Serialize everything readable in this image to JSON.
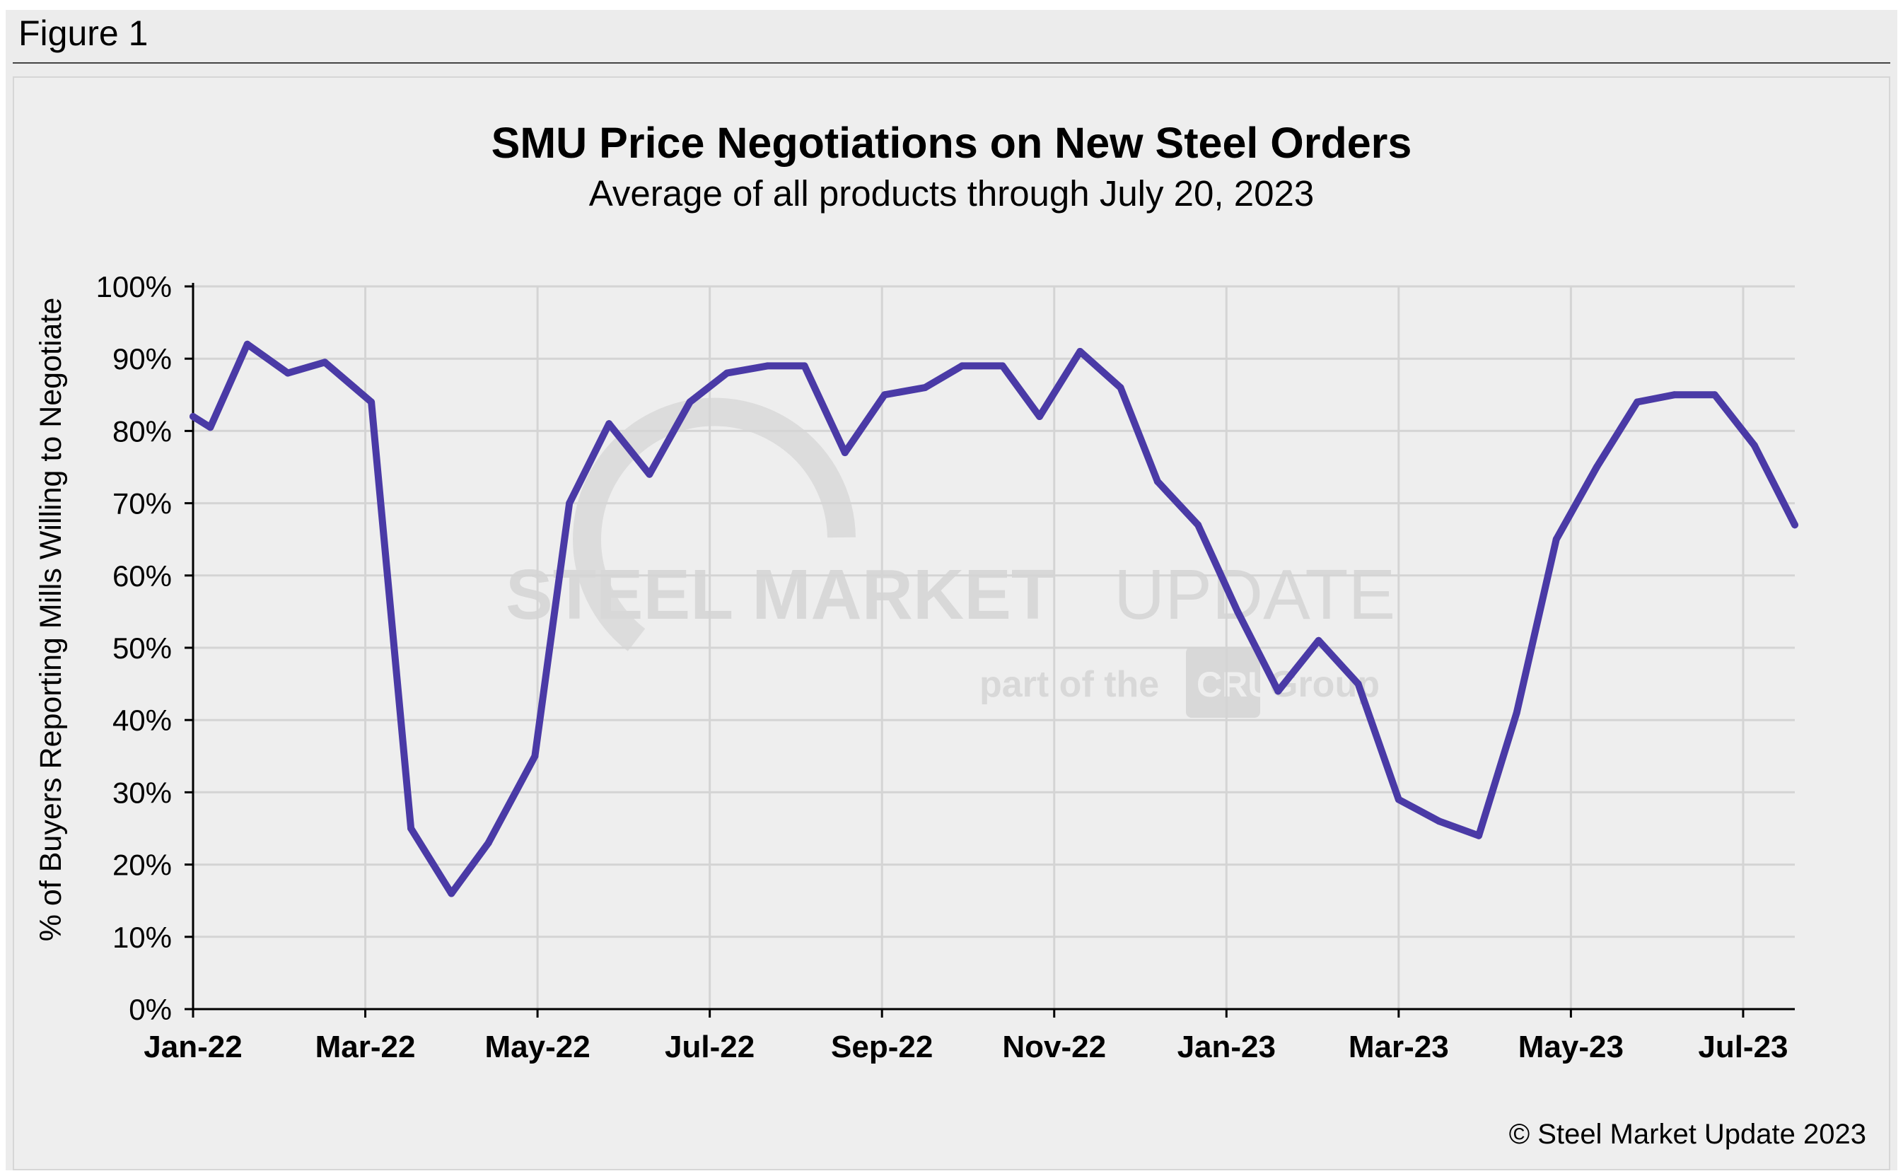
{
  "figure_label": "Figure 1",
  "copyright": "© Steel Market Update 2023",
  "watermark": {
    "brand_bold": "STEEL MARKET",
    "brand_light": "UPDATE",
    "part_of": "part of the",
    "cru": "CRU",
    "group": "Group"
  },
  "colors": {
    "line": "#4a3aa6",
    "grid": "#d4d4d4",
    "axis": "#000000",
    "background": "#eeeeee"
  },
  "chart_data": {
    "type": "line",
    "title": "SMU Price Negotiations on New Steel Orders",
    "subtitle": "Average of all products through July 20, 2023",
    "xlabel": "",
    "ylabel": "% of Buyers Reporting Mills Willing to Negotiate",
    "ylim": [
      0,
      100
    ],
    "y_ticks": [
      "0%",
      "10%",
      "20%",
      "30%",
      "40%",
      "50%",
      "60%",
      "70%",
      "80%",
      "90%",
      "100%"
    ],
    "x_tick_labels": [
      "Jan-22",
      "Mar-22",
      "May-22",
      "Jul-22",
      "Sep-22",
      "Nov-22",
      "Jan-23",
      "Mar-23",
      "May-23",
      "Jul-23"
    ],
    "x_tick_months": [
      0,
      2,
      4,
      6,
      8,
      10,
      12,
      14,
      16,
      18
    ],
    "x_range_months": [
      0,
      18.6
    ],
    "grid": true,
    "legend": "none",
    "series": [
      {
        "name": "Average of all products",
        "x_months": [
          0.0,
          0.2,
          0.63,
          1.1,
          1.53,
          2.07,
          2.53,
          3.0,
          3.43,
          3.97,
          4.37,
          4.83,
          5.3,
          5.77,
          6.2,
          6.67,
          7.1,
          7.57,
          8.03,
          8.5,
          8.93,
          9.4,
          9.83,
          10.3,
          10.77,
          11.2,
          11.67,
          12.13,
          12.6,
          13.07,
          13.53,
          14.0,
          14.47,
          14.93,
          15.37,
          15.83,
          16.3,
          16.77,
          17.2,
          17.67,
          18.13,
          18.6
        ],
        "values": [
          82,
          80.5,
          92,
          88,
          89.5,
          84,
          25,
          16,
          23,
          35,
          70,
          81,
          74,
          84,
          88,
          89,
          89,
          77,
          85,
          86,
          89,
          89,
          82,
          91,
          86,
          73,
          67,
          55,
          44,
          51,
          45,
          29,
          26,
          24,
          41,
          65,
          75,
          84,
          85,
          85,
          78,
          67
        ]
      }
    ]
  }
}
